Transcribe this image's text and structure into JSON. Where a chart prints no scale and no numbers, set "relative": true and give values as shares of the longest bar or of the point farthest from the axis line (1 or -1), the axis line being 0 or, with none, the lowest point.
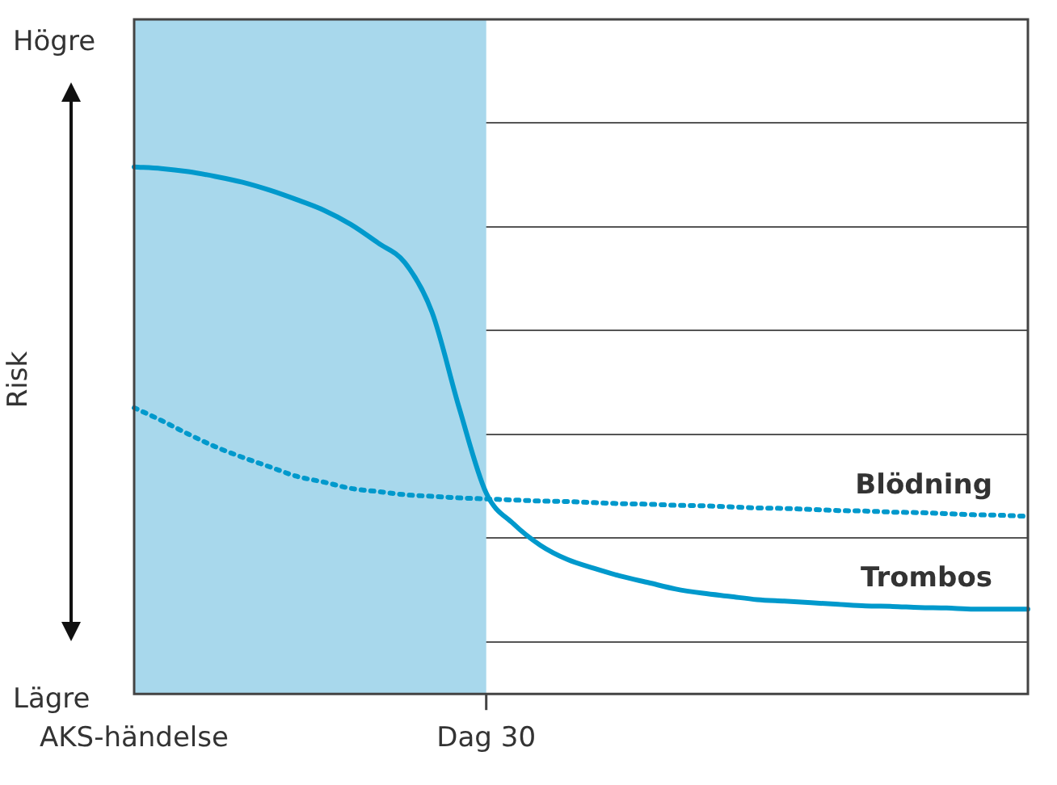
{
  "chart_data": {
    "type": "line",
    "relative": true,
    "ylabel": "Risk",
    "annotations": [
      "Högre",
      "Lägre"
    ],
    "categories": [
      "AKS-händelse",
      null,
      null,
      null,
      null,
      null,
      null,
      null,
      null,
      null,
      null,
      null,
      null,
      "Dag 30",
      null,
      null,
      null,
      null,
      null,
      null,
      null,
      null,
      null,
      null,
      null,
      null,
      null,
      null,
      null,
      null,
      null,
      null,
      null,
      null
    ],
    "grid": "y",
    "legend": false,
    "marker": "none",
    "bands": [
      {
        "axis": "x",
        "from": "AKS-händelse",
        "to": "Dag 30",
        "color": "#a8d8ec"
      }
    ],
    "series": [
      {
        "name": "Trombos",
        "color": "#0099cc",
        "line_style": "solid",
        "values": [
          1,
          0.997,
          0.991,
          0.982,
          0.971,
          0.956,
          0.938,
          0.918,
          0.891,
          0.856,
          0.818,
          0.724,
          0.543,
          0.381,
          0.323,
          0.282,
          0.255,
          0.238,
          0.223,
          0.211,
          0.199,
          0.191,
          0.185,
          0.179,
          0.176,
          0.173,
          0.17,
          0.167,
          0.166,
          0.164,
          0.163,
          0.161,
          0.161,
          0.161
        ]
      },
      {
        "name": "Blödning",
        "color": "#0099cc",
        "line_style": "dotted",
        "values": [
          0.543,
          0.519,
          0.493,
          0.469,
          0.449,
          0.431,
          0.413,
          0.402,
          0.39,
          0.384,
          0.378,
          0.375,
          0.372,
          0.37,
          0.368,
          0.366,
          0.365,
          0.363,
          0.361,
          0.36,
          0.358,
          0.357,
          0.355,
          0.353,
          0.352,
          0.35,
          0.348,
          0.347,
          0.345,
          0.344,
          0.342,
          0.34,
          0.339,
          0.337
        ]
      }
    ]
  }
}
